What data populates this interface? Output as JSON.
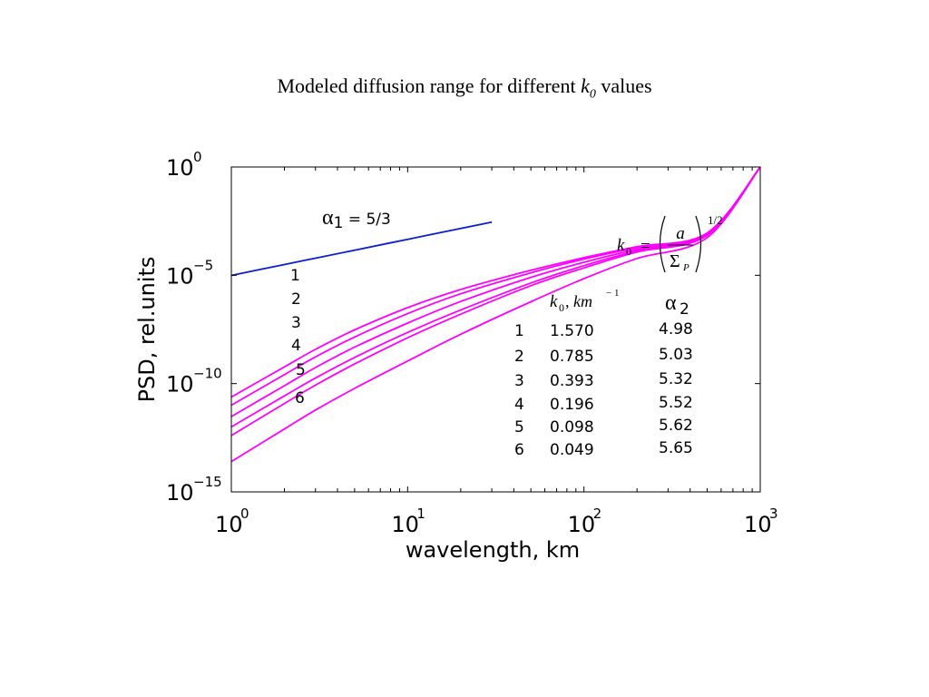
{
  "slide": {
    "title_prefix": "Modeled diffusion range for different ",
    "title_var": "k",
    "title_sub": "0",
    "title_suffix": " values"
  },
  "chart_data": {
    "type": "line",
    "title": "",
    "xlabel": "wavelength, km",
    "ylabel": "PSD, rel.units",
    "xscale": "log",
    "yscale": "log",
    "xlim": [
      1,
      1000
    ],
    "ylim": [
      1e-15,
      1
    ],
    "grid": false,
    "colors": {
      "reference": "#0a1fd0",
      "model": "#ff00ff",
      "axis": "#000000"
    },
    "x_ticks": [
      {
        "base": "10",
        "exp": "0"
      },
      {
        "base": "10",
        "exp": "1"
      },
      {
        "base": "10",
        "exp": "2"
      },
      {
        "base": "10",
        "exp": "3"
      }
    ],
    "y_ticks": [
      {
        "base": "10",
        "exp": "0"
      },
      {
        "base": "10",
        "exp": "−5"
      },
      {
        "base": "10",
        "exp": "−10"
      },
      {
        "base": "10",
        "exp": "−15"
      }
    ],
    "reference_line": {
      "alpha_symbol": "α",
      "alpha_sub": "1",
      "text": " = 5/3",
      "slope": 1.667
    },
    "series": [
      {
        "label": "1",
        "k0": "1.570",
        "alpha2": "4.98",
        "x": [
          1,
          2,
          3,
          5,
          10,
          20,
          50,
          100,
          200,
          500,
          1000
        ],
        "y": [
          1e-12,
          2.7e-11,
          1.8e-10,
          1.6e-09,
          2.3e-08,
          2.5e-07,
          4.4e-06,
          2.8e-05,
          0.000135,
          0.00077,
          0.99
        ]
      },
      {
        "label": "2",
        "k0": "0.785",
        "alpha2": "5.03",
        "x": [
          1,
          2,
          3,
          5,
          10,
          20,
          50,
          100,
          200,
          500,
          1000
        ],
        "y": [
          1e-11,
          2.6e-10,
          1.7e-09,
          1.4e-08,
          1.7e-07,
          1.4e-06,
          1.3e-05,
          5.6e-05,
          0.00019,
          0.00085,
          0.99
        ]
      },
      {
        "label": "3",
        "k0": "0.393",
        "alpha2": "5.32",
        "x": [
          1,
          2,
          3,
          5,
          10,
          20,
          50,
          100,
          200,
          500,
          1000
        ],
        "y": [
          4e-13,
          1.2e-11,
          8.5e-11,
          8e-10,
          1.3e-08,
          1.6e-07,
          3.3e-06,
          2.2e-05,
          0.00012,
          0.0007,
          0.99
        ]
      },
      {
        "label": "4",
        "k0": "0.196",
        "alpha2": "5.52",
        "x": [
          1,
          2,
          3,
          5,
          10,
          20,
          50,
          100,
          200,
          500,
          1000
        ],
        "y": [
          2.4e-11,
          5.9e-10,
          3.8e-09,
          3e-08,
          3.2e-07,
          2.2e-06,
          1.7e-05,
          6.5e-05,
          0.00021,
          0.0009,
          0.99
        ]
      },
      {
        "label": "5",
        "k0": "0.098",
        "alpha2": "5.62",
        "x": [
          1,
          2,
          3,
          5,
          10,
          20,
          50,
          100,
          200,
          500,
          1000
        ],
        "y": [
          3e-12,
          8e-11,
          5.5e-10,
          4.8e-09,
          6.2e-08,
          6.2e-07,
          8e-06,
          4e-05,
          0.00016,
          0.0008,
          0.99
        ]
      },
      {
        "label": "6",
        "k0": "0.049",
        "alpha2": "5.65",
        "x": [
          1,
          2,
          3,
          5,
          10,
          20,
          50,
          100,
          200,
          500,
          1000
        ],
        "y": [
          2.5e-14,
          8e-13,
          6e-12,
          6e-11,
          1.1e-09,
          1.9e-08,
          6e-07,
          7e-06,
          6e-05,
          0.00055,
          0.99
        ]
      }
    ],
    "formula": {
      "lhs_var": "k",
      "lhs_sub": "0",
      "eq": "=",
      "numerator": "a",
      "denominator": "Σ",
      "denominator_sub": "P",
      "exponent": "1/2"
    },
    "table": {
      "col_k0_var": "k",
      "col_k0_sub": "0",
      "col_k0_unit": ", km",
      "col_k0_unit_exp": "− 1",
      "col_alpha_symbol": "α",
      "col_alpha_sub": "2",
      "rows": [
        {
          "n": "1",
          "k0": "1.570",
          "alpha2": "4.98"
        },
        {
          "n": "2",
          "k0": "0.785",
          "alpha2": "5.03"
        },
        {
          "n": "3",
          "k0": "0.393",
          "alpha2": "5.32"
        },
        {
          "n": "4",
          "k0": "0.196",
          "alpha2": "5.52"
        },
        {
          "n": "5",
          "k0": "0.098",
          "alpha2": "5.62"
        },
        {
          "n": "6",
          "k0": "0.049",
          "alpha2": "5.65"
        }
      ]
    }
  }
}
